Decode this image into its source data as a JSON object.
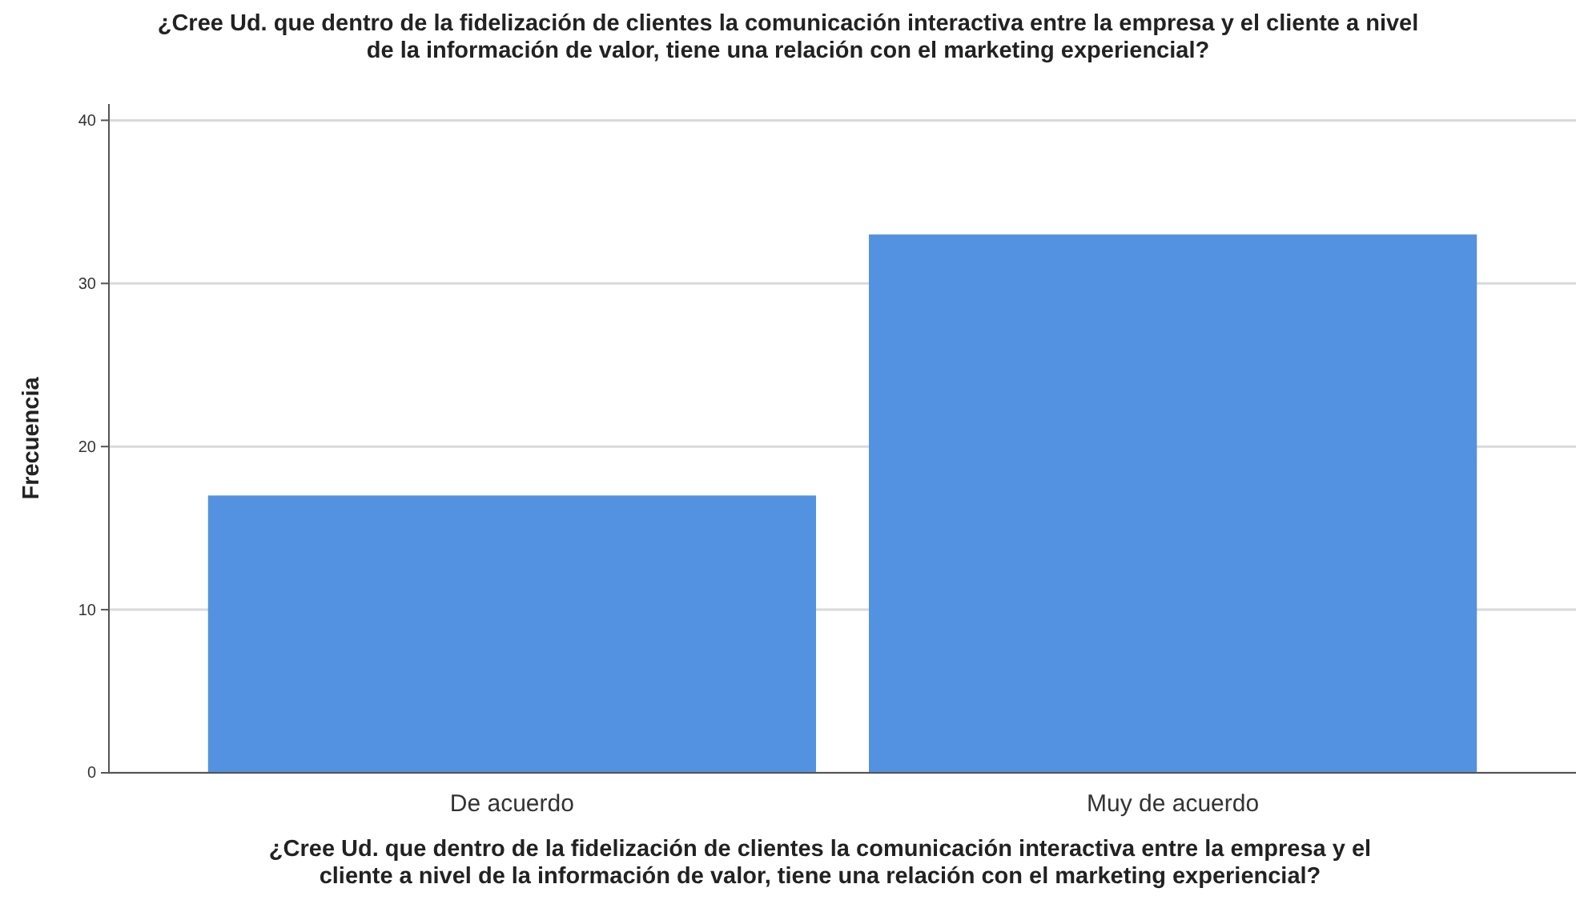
{
  "chart_data": {
    "type": "bar",
    "title": "¿Cree Ud. que dentro de la fidelización de clientes la comunicación interactiva entre la empresa y el cliente a nivel de la información de valor, tiene una relación con el marketing experiencial?",
    "xlabel": "¿Cree Ud. que dentro de la fidelización de clientes la comunicación interactiva entre la empresa y el cliente a nivel de la información de valor, tiene una relación con el marketing experiencial?",
    "ylabel": "Frecuencia",
    "categories": [
      "De acuerdo",
      "Muy de acuerdo"
    ],
    "values": [
      17,
      33
    ],
    "color": "#5392e0",
    "ylim": [
      0,
      41
    ],
    "yticks": [
      0,
      10,
      20,
      30,
      40
    ],
    "grid": "y"
  }
}
